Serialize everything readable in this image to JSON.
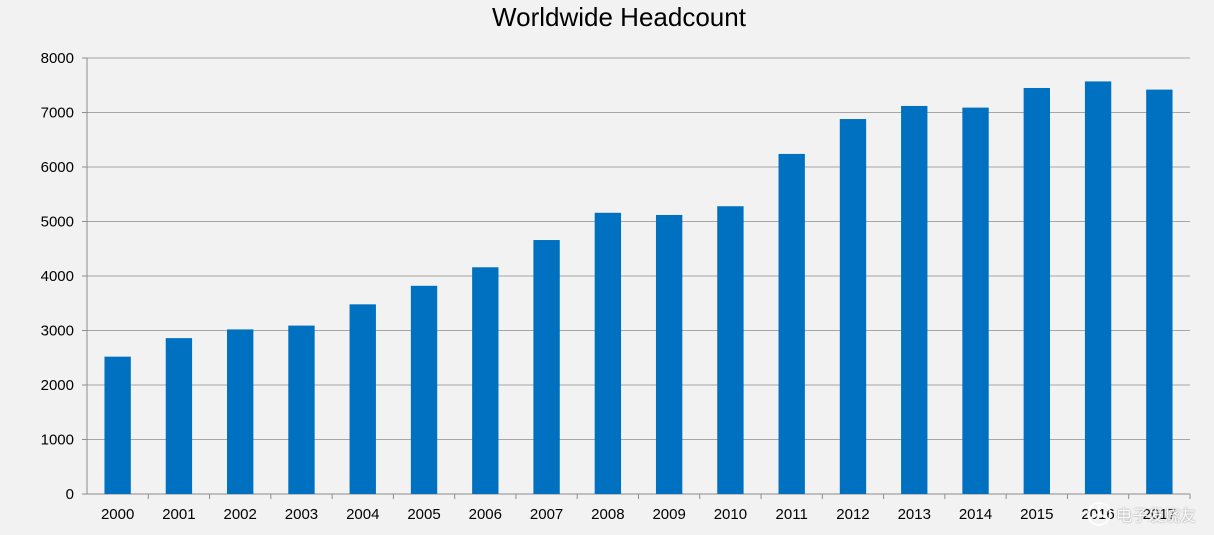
{
  "chart_data": {
    "type": "bar",
    "title": "Worldwide Headcount",
    "xlabel": "",
    "ylabel": "",
    "categories": [
      "2000",
      "2001",
      "2002",
      "2003",
      "2004",
      "2005",
      "2006",
      "2007",
      "2008",
      "2009",
      "2010",
      "2011",
      "2012",
      "2013",
      "2014",
      "2015",
      "2016",
      "2017"
    ],
    "values": [
      2520,
      2860,
      3020,
      3090,
      3480,
      3820,
      4160,
      4660,
      5160,
      5120,
      5280,
      6240,
      6880,
      7120,
      7090,
      7450,
      7570,
      7420
    ],
    "ylim": [
      0,
      8000
    ],
    "yticks": [
      0,
      1000,
      2000,
      3000,
      4000,
      5000,
      6000,
      7000,
      8000
    ],
    "grid": true,
    "bar_color": "#0070C0"
  },
  "watermark": {
    "text": "电子发烧友",
    "icon": "fan-logo-icon"
  }
}
